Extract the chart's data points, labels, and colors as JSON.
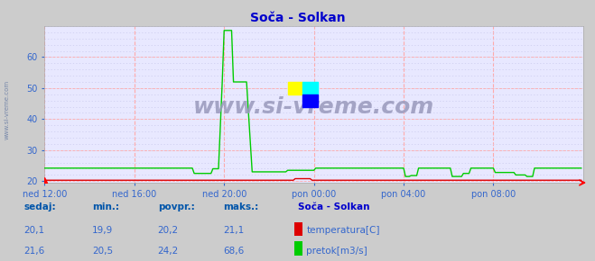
{
  "title": "Soča - Solkan",
  "title_color": "#0000cc",
  "bg_color": "#cccccc",
  "plot_bg_color": "#e8e8ff",
  "grid_color_h": "#ffaaaa",
  "grid_color_v": "#ffaaaa",
  "grid_dots_color": "#ccccee",
  "ylabel_color": "#3366cc",
  "xlabel_color": "#3366cc",
  "ylim": [
    19.5,
    70
  ],
  "yticks": [
    20,
    30,
    40,
    50,
    60
  ],
  "n_points": 288,
  "xtick_labels": [
    "ned 12:00",
    "ned 16:00",
    "ned 20:00",
    "pon 00:00",
    "pon 04:00",
    "pon 08:00"
  ],
  "xtick_positions": [
    0,
    48,
    96,
    144,
    192,
    240
  ],
  "watermark": "www.si-vreme.com",
  "watermark_color": "#9999bb",
  "sidebar_text": "www.si-vreme.com",
  "sidebar_color": "#7788aa",
  "temp_color": "#dd0000",
  "flow_color": "#00cc00",
  "legend_title": "Soča - Solkan",
  "legend_title_color": "#0000cc",
  "text_color": "#3366cc",
  "label_bold_color": "#0055aa",
  "sedaj_label": "sedaj:",
  "min_label": "min.:",
  "povpr_label": "povpr.:",
  "maks_label": "maks.:",
  "temp_sedaj": "20,1",
  "temp_min": "19,9",
  "temp_povpr": "20,2",
  "temp_maks": "21,1",
  "flow_sedaj": "21,6",
  "flow_min": "20,5",
  "flow_povpr": "24,2",
  "flow_maks": "68,6",
  "temp_label": "temperatura[C]",
  "flow_label": "pretok[m3/s]",
  "figwidth": 6.59,
  "figheight": 2.9,
  "dpi": 100
}
